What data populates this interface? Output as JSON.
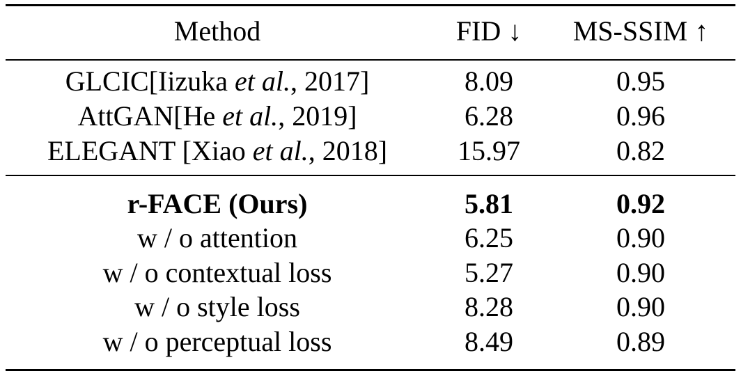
{
  "table": {
    "headers": {
      "method": "Method",
      "fid": "FID ↓",
      "ms_ssim": "MS-SSIM ↑"
    },
    "baseline_rows": [
      {
        "method_name": "GLCIC[Iizuka ",
        "method_etal": "et al.",
        "method_year": ", 2017]",
        "fid": "8.09",
        "ms_ssim": "0.95"
      },
      {
        "method_name": "AttGAN[He ",
        "method_etal": "et al.",
        "method_year": ", 2019]",
        "fid": "6.28",
        "ms_ssim": "0.96"
      },
      {
        "method_name": "ELEGANT [Xiao ",
        "method_etal": "et al.",
        "method_year": ", 2018]",
        "fid": "15.97",
        "ms_ssim": "0.82"
      }
    ],
    "ours_rows": [
      {
        "method": "r-FACE (Ours)",
        "fid": "5.81",
        "ms_ssim": "0.92"
      },
      {
        "method": "w / o attention",
        "fid": "6.25",
        "ms_ssim": "0.90"
      },
      {
        "method": "w / o contextual loss",
        "fid": "5.27",
        "ms_ssim": "0.90"
      },
      {
        "method": "w / o style loss",
        "fid": "8.28",
        "ms_ssim": "0.90"
      },
      {
        "method": "w / o perceptual loss",
        "fid": "8.49",
        "ms_ssim": "0.89"
      }
    ]
  }
}
